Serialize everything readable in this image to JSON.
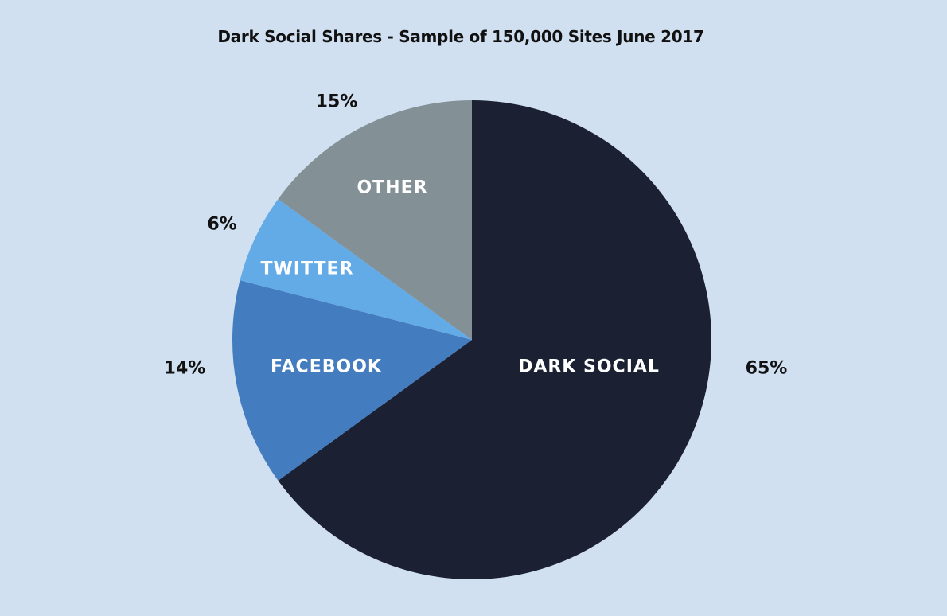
{
  "title": "Dark Social Shares - Sample of 150,000 Sites June 2017",
  "chart_data": {
    "type": "pie",
    "title": "Dark Social Shares - Sample of 150,000 Sites June 2017",
    "categories": [
      "DARK SOCIAL",
      "FACEBOOK",
      "TWITTER",
      "OTHER"
    ],
    "values": [
      65,
      14,
      6,
      15
    ],
    "value_labels": [
      "65%",
      "14%",
      "6%",
      "15%"
    ],
    "colors": [
      "#1b2133",
      "#437cbf",
      "#62abe6",
      "#839196"
    ],
    "start_angle": "12 o'clock, clockwise",
    "legend": "none (labels inside slices, percentages outside)"
  },
  "slices": [
    {
      "label": "DARK SOCIAL",
      "pct": "65%",
      "color": "#1b2133"
    },
    {
      "label": "FACEBOOK",
      "pct": "14%",
      "color": "#437cbf"
    },
    {
      "label": "TWITTER",
      "pct": "6%",
      "color": "#62abe6"
    },
    {
      "label": "OTHER",
      "pct": "15%",
      "color": "#839196"
    }
  ]
}
